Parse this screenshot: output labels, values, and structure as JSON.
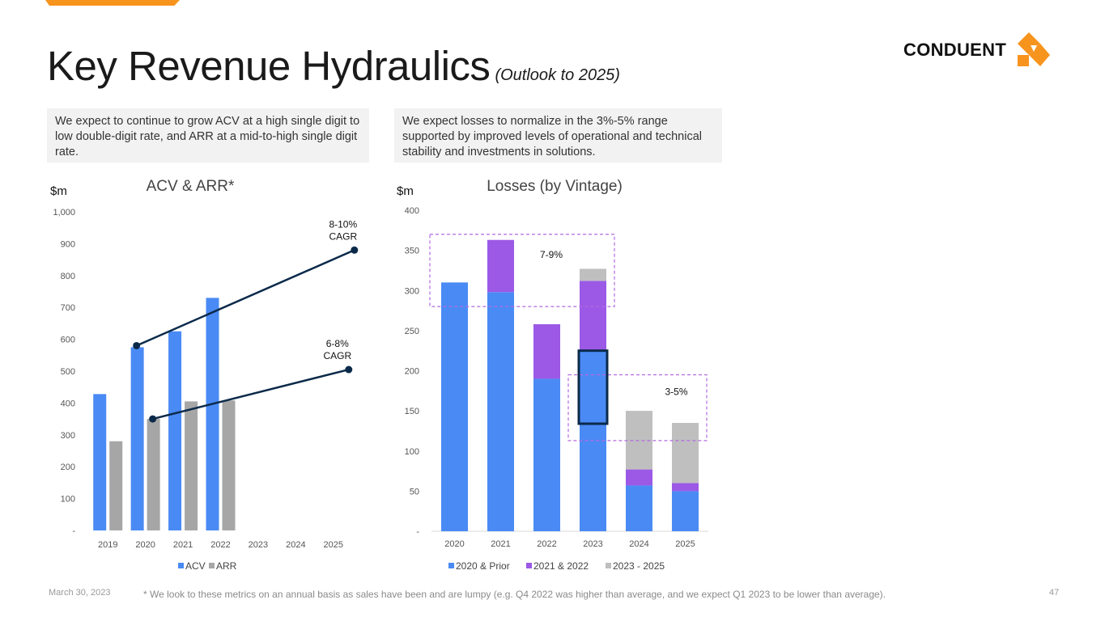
{
  "page": {
    "title": "Key Revenue Hydraulics",
    "subtitle": "(Outlook to 2025)",
    "brand": "CONDUENT",
    "callout_left": "We expect to continue to grow ACV at a high single digit to low double-digit rate, and ARR at a mid-to-high single digit rate.",
    "callout_right": "We expect losses to normalize in the 3%-5% range supported by improved levels of operational and technical stability and investments in solutions.",
    "footer_date": "March 30, 2023",
    "footer_note": "* We look to these metrics on an annual basis as sales have been and are lumpy (e.g. Q4 2022 was higher than average, and we expect Q1 2023 to be lower than average).",
    "page_number": "47"
  },
  "colors": {
    "accent": "#f7941d",
    "blue": "#4a8af4",
    "gray": "#a6a6a6",
    "purple": "#9b59e6",
    "light_gray": "#bfbfbf",
    "navy": "#0b2a4a",
    "dashed": "#b36ae2"
  },
  "chart_data": [
    {
      "type": "bar",
      "title": "ACV & ARR*",
      "unit_label": "$m",
      "categories": [
        "2019",
        "2020",
        "2021",
        "2022",
        "2023",
        "2024",
        "2025"
      ],
      "series": [
        {
          "name": "ACV",
          "values": [
            428,
            575,
            625,
            730,
            null,
            null,
            null
          ]
        },
        {
          "name": "ARR",
          "values": [
            280,
            350,
            405,
            408,
            null,
            null,
            null
          ]
        }
      ],
      "ylim": [
        0,
        1000
      ],
      "yticks": [
        "-",
        "100",
        "200",
        "300",
        "400",
        "500",
        "600",
        "700",
        "800",
        "900",
        "1,000"
      ],
      "ytick_values": [
        0,
        100,
        200,
        300,
        400,
        500,
        600,
        700,
        800,
        900,
        1000
      ],
      "trend_lines": [
        {
          "label_line1": "8-10%",
          "label_line2": "CAGR",
          "from_category": "2020",
          "from_value": 580,
          "to_category": "2025",
          "to_value": 880
        },
        {
          "label_line1": "6-8%",
          "label_line2": "CAGR",
          "from_category": "2020",
          "from_value": 350,
          "to_category": "2025",
          "to_value": 505
        }
      ],
      "legend": [
        "ACV",
        "ARR"
      ]
    },
    {
      "type": "bar",
      "stacked": true,
      "title": "Losses (by Vintage)",
      "unit_label": "$m",
      "categories": [
        "2020",
        "2021",
        "2022",
        "2023",
        "2024",
        "2025"
      ],
      "series": [
        {
          "name": "2020 & Prior",
          "values": [
            310,
            298,
            190,
            225,
            57,
            50
          ]
        },
        {
          "name": "2021 & 2022",
          "values": [
            0,
            65,
            68,
            87,
            20,
            10
          ]
        },
        {
          "name": "2023 - 2025",
          "values": [
            0,
            0,
            0,
            15,
            73,
            75
          ]
        }
      ],
      "ylim": [
        0,
        400
      ],
      "yticks": [
        "-",
        "50",
        "100",
        "150",
        "200",
        "250",
        "300",
        "350",
        "400"
      ],
      "ytick_values": [
        0,
        50,
        100,
        150,
        200,
        250,
        300,
        350,
        400
      ],
      "annotations": [
        {
          "text": "7-9%",
          "box_from_category": "2020",
          "box_to_category": "2023",
          "box_low": 280,
          "box_high": 370
        },
        {
          "text": "3-5%",
          "box_from_category": "2023",
          "box_to_category": "2025",
          "box_low": 113,
          "box_high": 195
        }
      ],
      "highlight": {
        "category": "2023",
        "low": 134,
        "high": 225
      },
      "legend": [
        "2020 & Prior",
        "2021 & 2022",
        "2023 - 2025"
      ]
    }
  ]
}
